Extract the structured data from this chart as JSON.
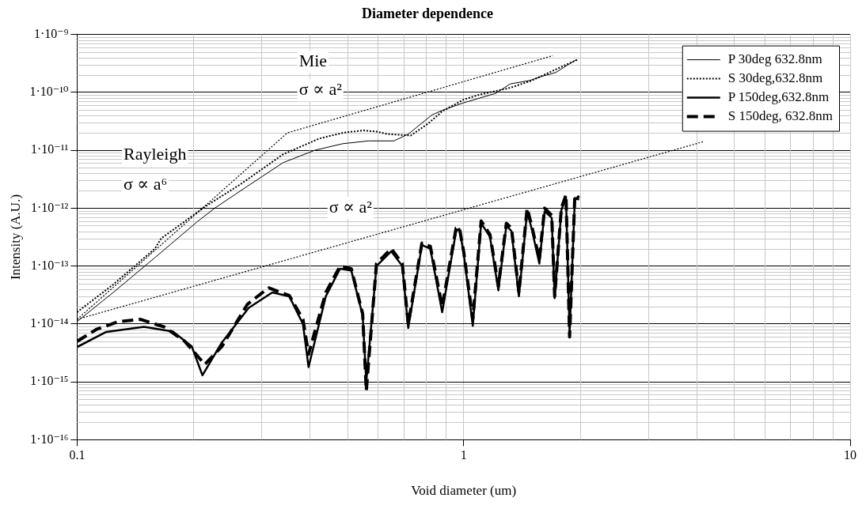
{
  "chart_data": {
    "type": "line",
    "title": "Diameter dependence",
    "xlabel": "Void diameter (um)",
    "ylabel": "Intensity (A.U.)",
    "log": "xy",
    "grid": true,
    "legend": "top right",
    "marker": "none",
    "xlim": [
      0.1,
      10
    ],
    "xticks": [
      0.1,
      1,
      10
    ],
    "ylim": [
      1e-16,
      1e-09
    ],
    "yticks": [
      {
        "value": 1e-16,
        "label": "1·10⁻¹⁶"
      },
      {
        "value": 1e-15,
        "label": "1·10⁻¹⁵"
      },
      {
        "value": 1e-14,
        "label": "1·10⁻¹⁴"
      },
      {
        "value": 1e-13,
        "label": "1·10⁻¹³"
      },
      {
        "value": 1e-12,
        "label": "1·10⁻¹²"
      },
      {
        "value": 1e-11,
        "label": "1·10⁻¹¹"
      },
      {
        "value": 1e-10,
        "label": "1·10⁻¹⁰"
      },
      {
        "value": 1e-09,
        "label": "1·10⁻⁹"
      }
    ],
    "annotations": [
      "Mie",
      "σ ∝ a²",
      "Rayleigh",
      "σ ∝ a⁶",
      "σ ∝ a²"
    ],
    "series": [
      {
        "name": "P 30deg 632.8nm",
        "color": "#000000",
        "line_style": "solid",
        "x": [
          0.1,
          0.124,
          0.159,
          0.205,
          0.227,
          0.265,
          0.341,
          0.412,
          0.487,
          0.567,
          0.66,
          0.719,
          0.829,
          0.895,
          1.0,
          1.21,
          1.32,
          1.48,
          1.6,
          1.73,
          1.87,
          1.96
        ],
        "values": [
          1.1e-14,
          3.5e-14,
          1.4e-13,
          5.9e-13,
          1e-12,
          2e-12,
          6.1e-12,
          1e-11,
          1.3e-11,
          1.45e-11,
          1.45e-11,
          1.9e-11,
          4.1e-11,
          5.1e-11,
          6.6e-11,
          9.6e-11,
          1.4e-10,
          1.6e-10,
          1.9e-10,
          2.2e-10,
          3.05e-10,
          3.7e-10
        ]
      },
      {
        "name": "S 30deg,632.8nm",
        "color": "#000000",
        "line_style": "dotted",
        "x": [
          0.1,
          0.124,
          0.159,
          0.165,
          0.216,
          0.265,
          0.341,
          0.424,
          0.487,
          0.548,
          0.596,
          0.636,
          0.73,
          0.81,
          0.88,
          1.0,
          1.09,
          1.32,
          1.5,
          1.85,
          1.98
        ],
        "values": [
          1.6e-14,
          4.8e-14,
          2e-13,
          3e-13,
          1.1e-12,
          2.6e-12,
          8.5e-12,
          1.6e-11,
          2e-11,
          2.2e-11,
          2.1e-11,
          1.9e-11,
          1.8e-11,
          2.9e-11,
          4.7e-11,
          7.5e-11,
          9e-11,
          1.2e-10,
          1.6e-10,
          3.05e-10,
          3.7e-10
        ]
      },
      {
        "name": "P 150deg,632.8nm",
        "color": "#000000",
        "line_style": "solid",
        "x": [
          0.1,
          0.119,
          0.149,
          0.177,
          0.198,
          0.211,
          0.236,
          0.278,
          0.32,
          0.354,
          0.384,
          0.397,
          0.44,
          0.479,
          0.512,
          0.548,
          0.56,
          0.595,
          0.65,
          0.694,
          0.719,
          0.78,
          0.82,
          0.88,
          0.956,
          0.975,
          1.0,
          1.056,
          1.11,
          1.17,
          1.23,
          1.29,
          1.33,
          1.39,
          1.46,
          1.5,
          1.57,
          1.62,
          1.69,
          1.72,
          1.79,
          1.84,
          1.88,
          1.94,
          1.99
        ],
        "values": [
          4e-15,
          7.3e-15,
          8.9e-15,
          7.4e-15,
          4.1e-15,
          1.3e-15,
          4.6e-15,
          1.9e-14,
          3.5e-14,
          3e-14,
          1e-14,
          1.8e-15,
          3e-14,
          9e-14,
          8.4e-14,
          1.4e-14,
          1e-15,
          1e-13,
          1.8e-13,
          1e-13,
          8.5e-15,
          2.3e-13,
          2e-13,
          1.6e-14,
          4e-13,
          4.4e-13,
          1.7e-13,
          9.3e-15,
          5.5e-13,
          3.2e-13,
          3.8e-14,
          5e-13,
          4e-13,
          3e-14,
          8.8e-13,
          4.4e-13,
          1.1e-13,
          8.8e-13,
          6.8e-13,
          2.8e-14,
          9.3e-13,
          1.5e-12,
          7e-15,
          1.5e-12,
          1.4e-12
        ]
      },
      {
        "name": "S 150deg, 632.8nm",
        "color": "#000000",
        "line_style": "dashed",
        "x": [
          0.1,
          0.112,
          0.128,
          0.146,
          0.168,
          0.19,
          0.214,
          0.237,
          0.276,
          0.313,
          0.354,
          0.384,
          0.397,
          0.44,
          0.479,
          0.512,
          0.548,
          0.56,
          0.595,
          0.65,
          0.694,
          0.719,
          0.78,
          0.82,
          0.88,
          0.956,
          0.975,
          1.0,
          1.056,
          1.11,
          1.17,
          1.23,
          1.29,
          1.33,
          1.39,
          1.46,
          1.5,
          1.57,
          1.62,
          1.69,
          1.72,
          1.79,
          1.84,
          1.88,
          1.94,
          1.99
        ],
        "values": [
          5e-15,
          8e-15,
          1.1e-14,
          1.2e-14,
          8.9e-15,
          5e-15,
          2e-15,
          4.1e-15,
          2.2e-14,
          4.2e-14,
          3.1e-14,
          1.2e-14,
          3e-15,
          3.5e-14,
          1e-13,
          9e-14,
          1.5e-14,
          7e-16,
          1.1e-13,
          2e-13,
          1.1e-13,
          1e-14,
          2.5e-13,
          2.2e-13,
          2e-14,
          4.5e-13,
          4.6e-13,
          1.8e-13,
          1.2e-14,
          6e-13,
          3.5e-13,
          4.5e-14,
          5.5e-13,
          4.5e-13,
          3.5e-14,
          1e-12,
          5e-13,
          1.3e-13,
          1e-12,
          7.5e-13,
          3e-14,
          1e-12,
          1.7e-12,
          6e-15,
          1.7e-12,
          1.5e-12
        ]
      },
      {
        "type": "line",
        "color": "#000000",
        "line_style": "dotted",
        "x": [
          0.1,
          0.35,
          1.7
        ],
        "values": [
          1.2e-14,
          2e-11,
          4.3e-10
        ]
      },
      {
        "type": "line",
        "color": "#000000",
        "line_style": "dotted",
        "x": [
          0.1,
          4.16
        ],
        "values": [
          1.2e-14,
          1.4e-11
        ]
      }
    ]
  }
}
